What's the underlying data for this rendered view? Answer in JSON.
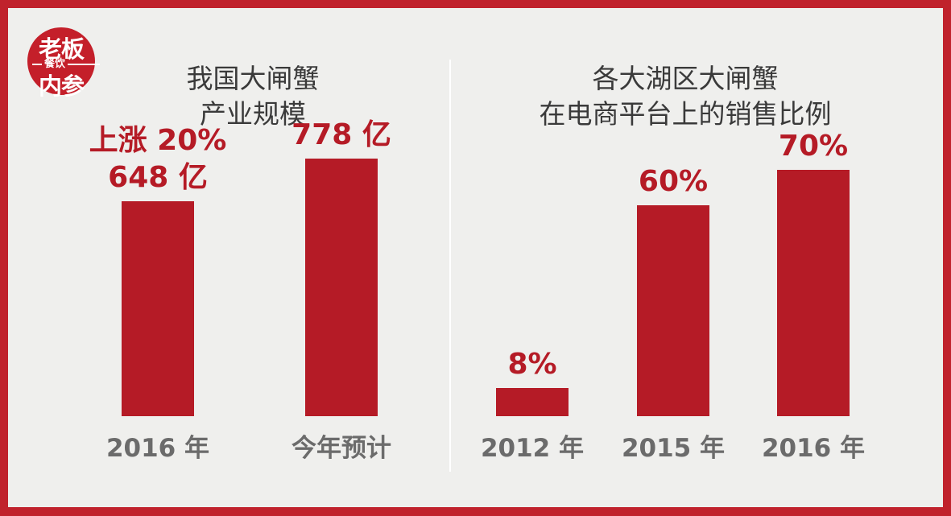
{
  "logo": {
    "top": "老板",
    "middle": "餐饮",
    "bottom": "内参"
  },
  "colors": {
    "bar": "#b51b26",
    "frame": "#c0222c",
    "background": "#efefed"
  },
  "chart_data": [
    {
      "type": "bar",
      "title": [
        "我国大闸蟹",
        "产业规模"
      ],
      "categories": [
        "2016 年",
        "今年预计"
      ],
      "values": [
        648,
        778
      ],
      "unit": "亿",
      "value_labels": [
        [
          "上涨 20%",
          "648 亿"
        ],
        [
          "778 亿"
        ]
      ],
      "ylim": [
        0,
        1000
      ]
    },
    {
      "type": "bar",
      "title": [
        "各大湖区大闸蟹",
        "在电商平台上的销售比例"
      ],
      "categories": [
        "2012 年",
        "2015 年",
        "2016 年"
      ],
      "values": [
        8,
        60,
        70
      ],
      "unit": "%",
      "value_labels": [
        [
          "8%"
        ],
        [
          "60%"
        ],
        [
          "70%"
        ]
      ],
      "ylim": [
        0,
        100
      ]
    }
  ]
}
